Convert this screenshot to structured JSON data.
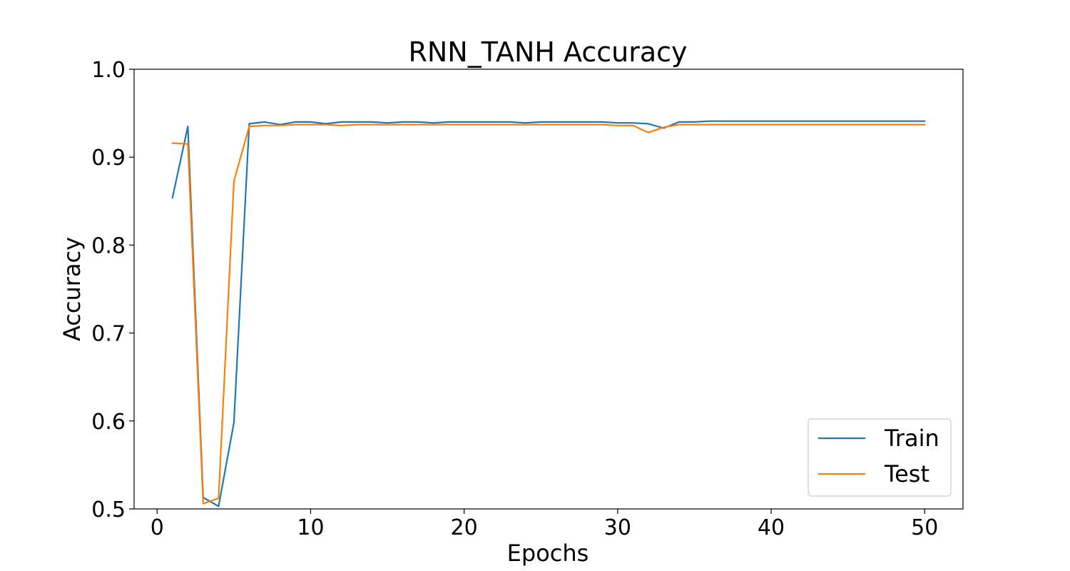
{
  "chart_data": {
    "type": "line",
    "title": "RNN_TANH Accuracy",
    "xlabel": "Epochs",
    "ylabel": "Accuracy",
    "xlim": [
      -1.5,
      52.5
    ],
    "ylim": [
      0.5,
      1.0
    ],
    "xticks": [
      0,
      10,
      20,
      30,
      40,
      50
    ],
    "xtick_labels": [
      "0",
      "10",
      "20",
      "30",
      "40",
      "50"
    ],
    "yticks": [
      0.5,
      0.6,
      0.7,
      0.8,
      0.9,
      1.0
    ],
    "ytick_labels": [
      "0.5",
      "0.6",
      "0.7",
      "0.8",
      "0.9",
      "1.0"
    ],
    "grid": false,
    "legend_position": "lower-right",
    "x": [
      1,
      2,
      3,
      4,
      5,
      6,
      7,
      8,
      9,
      10,
      11,
      12,
      13,
      14,
      15,
      16,
      17,
      18,
      19,
      20,
      21,
      22,
      23,
      24,
      25,
      26,
      27,
      28,
      29,
      30,
      31,
      32,
      33,
      34,
      35,
      36,
      37,
      38,
      39,
      40,
      41,
      42,
      43,
      44,
      45,
      46,
      47,
      48,
      49,
      50
    ],
    "series": [
      {
        "name": "Train",
        "color": "#1f77b4",
        "values": [
          0.854,
          0.935,
          0.513,
          0.503,
          0.598,
          0.938,
          0.94,
          0.937,
          0.94,
          0.94,
          0.938,
          0.94,
          0.94,
          0.94,
          0.939,
          0.94,
          0.94,
          0.939,
          0.94,
          0.94,
          0.94,
          0.94,
          0.94,
          0.939,
          0.94,
          0.94,
          0.94,
          0.94,
          0.94,
          0.939,
          0.939,
          0.938,
          0.933,
          0.94,
          0.94,
          0.941,
          0.941,
          0.941,
          0.941,
          0.941,
          0.941,
          0.941,
          0.941,
          0.941,
          0.941,
          0.941,
          0.941,
          0.941,
          0.941,
          0.941
        ]
      },
      {
        "name": "Test",
        "color": "#ff7f0e",
        "values": [
          0.916,
          0.915,
          0.506,
          0.512,
          0.873,
          0.935,
          0.936,
          0.936,
          0.937,
          0.937,
          0.937,
          0.936,
          0.937,
          0.937,
          0.937,
          0.937,
          0.937,
          0.937,
          0.937,
          0.937,
          0.937,
          0.937,
          0.937,
          0.937,
          0.937,
          0.937,
          0.937,
          0.937,
          0.937,
          0.936,
          0.936,
          0.928,
          0.934,
          0.937,
          0.937,
          0.937,
          0.937,
          0.937,
          0.937,
          0.937,
          0.937,
          0.937,
          0.937,
          0.937,
          0.937,
          0.937,
          0.937,
          0.937,
          0.937,
          0.937
        ]
      }
    ]
  }
}
